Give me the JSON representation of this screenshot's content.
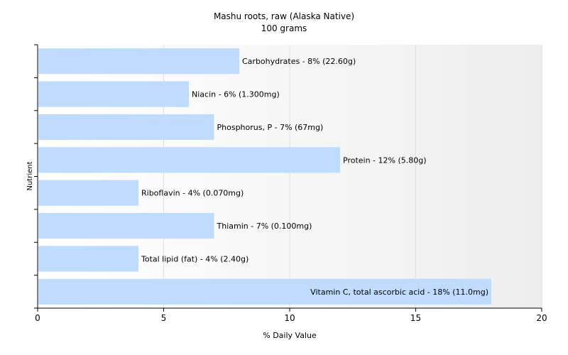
{
  "chart_data": {
    "type": "bar",
    "orientation": "horizontal",
    "title": "Mashu roots, raw (Alaska Native)",
    "subtitle": "100 grams",
    "xlabel": "% Daily Value",
    "ylabel": "Nutrient",
    "xlim": [
      0,
      20
    ],
    "xticks": [
      0,
      5,
      10,
      15,
      20
    ],
    "grid": "vertical",
    "legend": "none",
    "bar_color": "#bfdcff",
    "categories": [
      "Carbohydrates",
      "Niacin",
      "Phosphorus, P",
      "Protein",
      "Riboflavin",
      "Thiamin",
      "Total lipid (fat)",
      "Vitamin C, total ascorbic acid"
    ],
    "values": [
      8,
      6,
      7,
      12,
      4,
      7,
      4,
      18
    ],
    "data_labels": [
      "Carbohydrates - 8% (22.60g)",
      "Niacin - 6% (1.300mg)",
      "Phosphorus, P - 7% (67mg)",
      "Protein - 12% (5.80g)",
      "Riboflavin - 4% (0.070mg)",
      "Thiamin - 7% (0.100mg)",
      "Total lipid (fat) - 4% (2.40g)",
      "Vitamin C, total ascorbic acid - 18% (11.0mg)"
    ]
  }
}
